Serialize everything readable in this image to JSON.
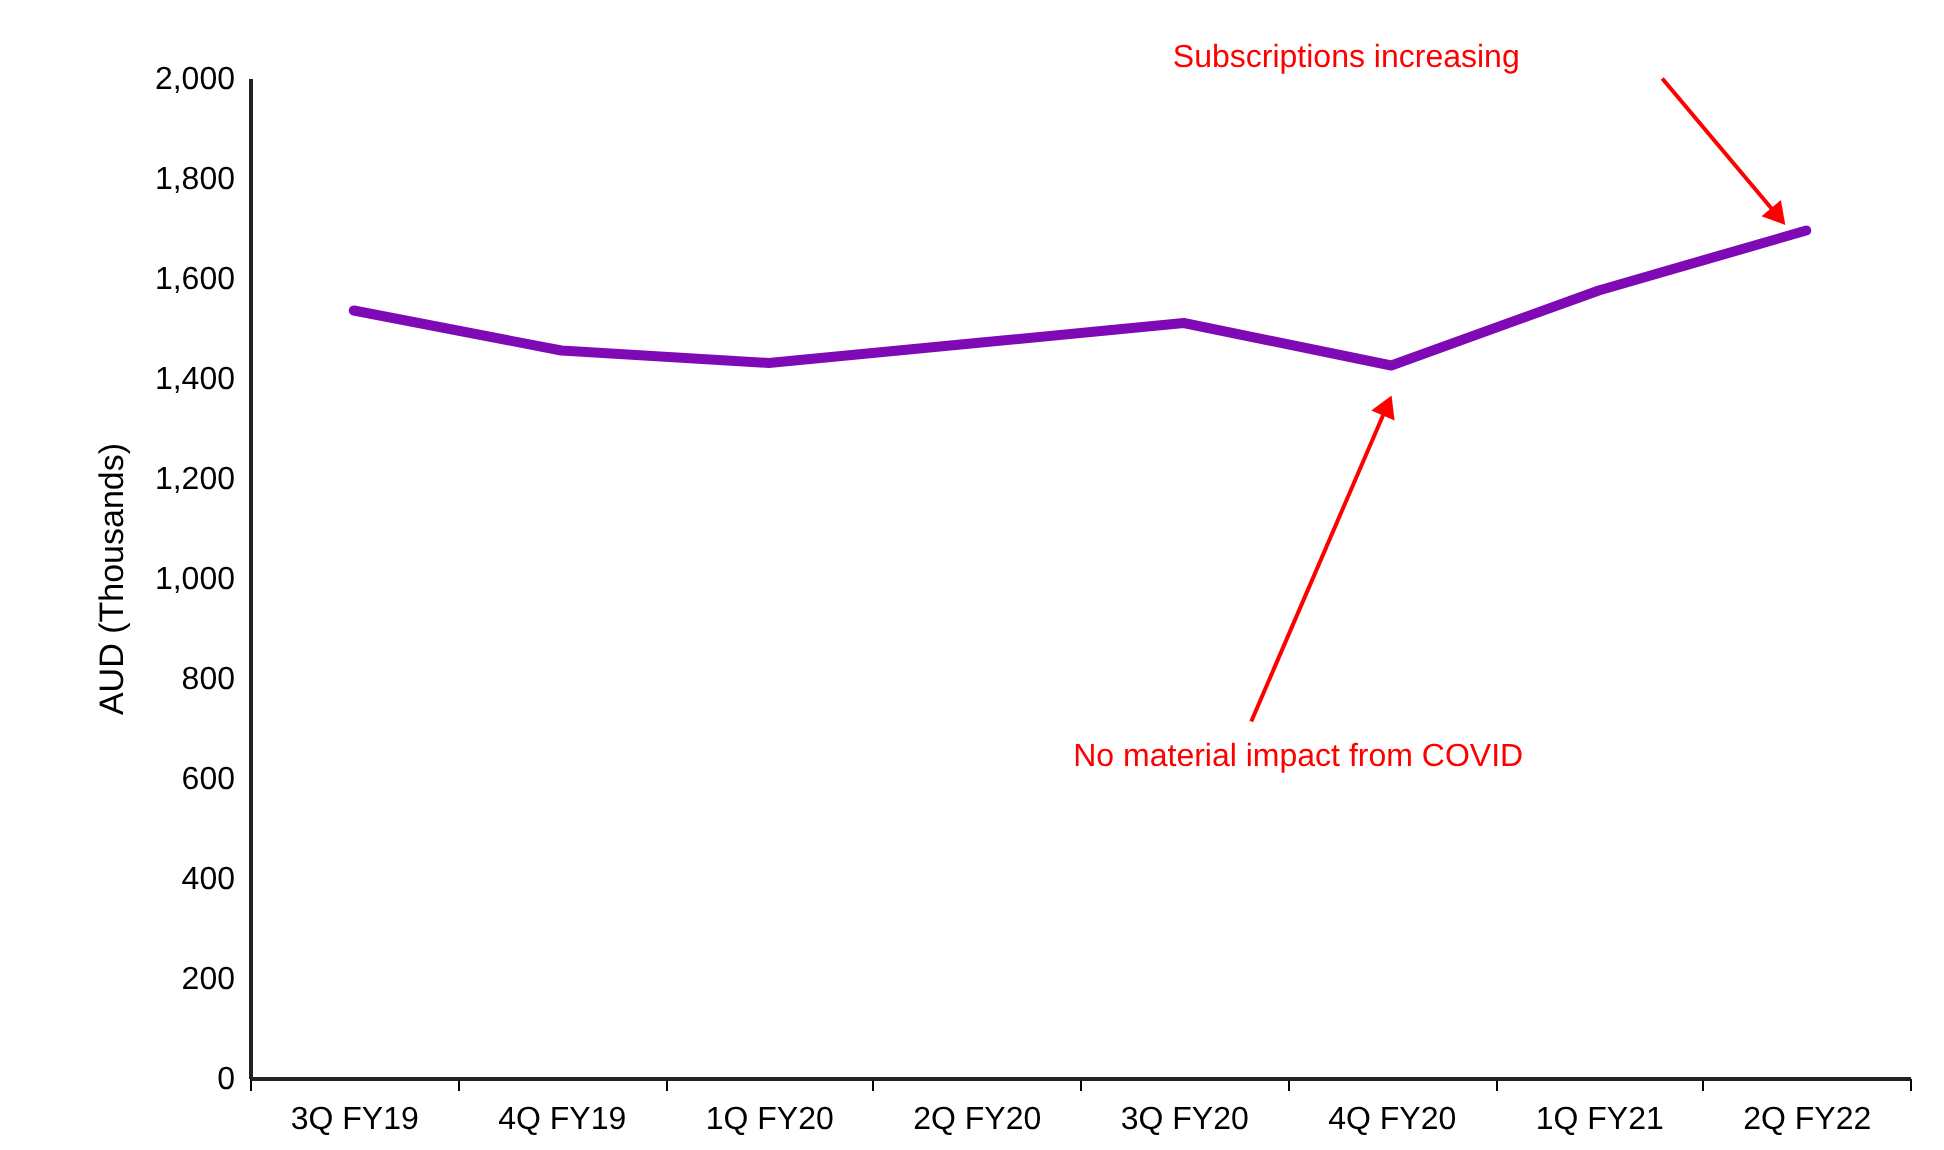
{
  "chart_data": {
    "type": "line",
    "ylabel": "AUD (Thousands)",
    "categories": [
      "3Q FY19",
      "4Q FY19",
      "1Q FY20",
      "2Q FY20",
      "3Q FY20",
      "4Q FY20",
      "1Q FY21",
      "2Q FY22"
    ],
    "series": [
      {
        "color": "#7f0ab5",
        "values": [
          1535,
          1455,
          1430,
          1470,
          1510,
          1425,
          1575,
          1695
        ]
      }
    ],
    "ylim": [
      0,
      2000
    ],
    "yticks": [
      0,
      200,
      400,
      600,
      800,
      {
        "value": 1000,
        "label": "1,000"
      },
      {
        "value": 1200,
        "label": "1,200"
      },
      {
        "value": 1400,
        "label": "1,400"
      },
      {
        "value": 1600,
        "label": "1,600"
      },
      {
        "value": 1800,
        "label": "1,800"
      },
      {
        "value": 2000,
        "label": "2,000"
      }
    ],
    "grid": false,
    "marker": "none",
    "line_style": "solid",
    "annotations": [
      "No material impact from COVID",
      "Subscriptions increasing"
    ]
  }
}
